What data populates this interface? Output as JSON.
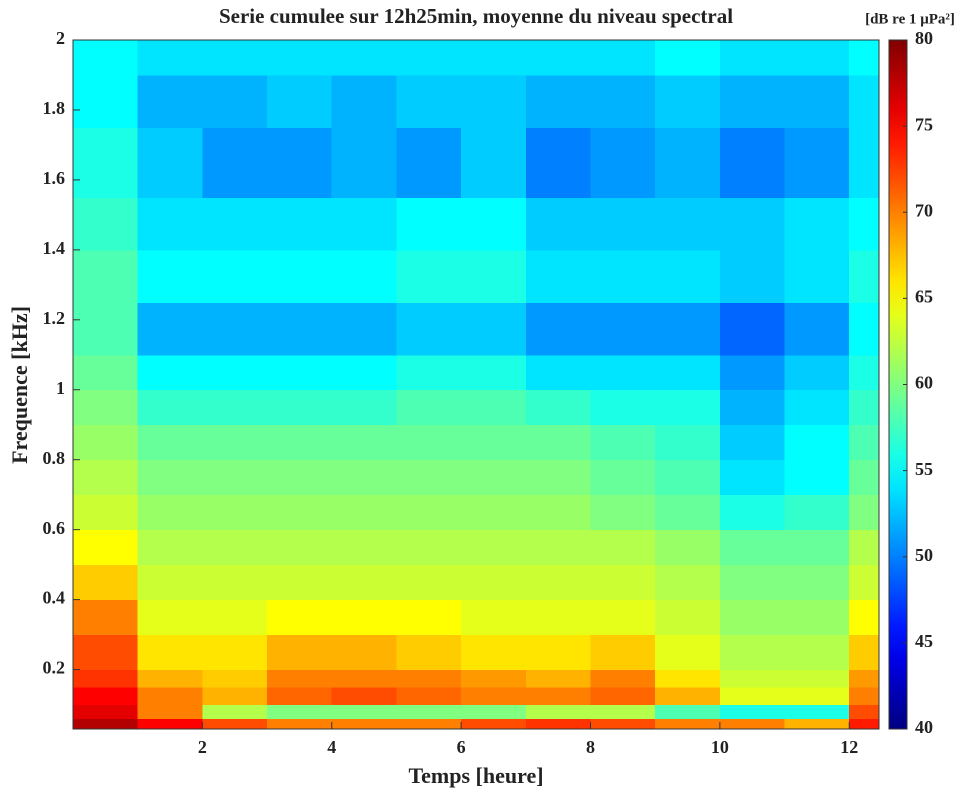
{
  "chart_data": {
    "type": "heatmap",
    "title": "Serie cumulee sur 12h25min, moyenne du niveau spectral",
    "x_label": "Temps [heure]",
    "y_label": "Frequence [kHz]",
    "colorbar_label": "[dB re 1 μPa²]",
    "xbins": [
      0,
      1,
      2,
      3,
      4,
      5,
      6,
      7,
      8,
      9,
      10,
      11,
      12,
      12.46
    ],
    "ybins": [
      0.03,
      0.06,
      0.1,
      0.15,
      0.2,
      0.3,
      0.4,
      0.5,
      0.6,
      0.7,
      0.8,
      0.9,
      1.0,
      1.1,
      1.25,
      1.4,
      1.55,
      1.75,
      1.9,
      2.0
    ],
    "z": [
      [
        78,
        75,
        72,
        70,
        70,
        70,
        72,
        73,
        72,
        70,
        70,
        68,
        74
      ],
      [
        76,
        70,
        62,
        60,
        60,
        60,
        60,
        62,
        62,
        58,
        56,
        56,
        72
      ],
      [
        75,
        70,
        68,
        71,
        72,
        71,
        70,
        70,
        71,
        68,
        64,
        64,
        70
      ],
      [
        73,
        68,
        67,
        70,
        70,
        70,
        69,
        68,
        70,
        66,
        63,
        63,
        69
      ],
      [
        72,
        66,
        66,
        68,
        68,
        67,
        66,
        66,
        67,
        64,
        62,
        62,
        67
      ],
      [
        70,
        64,
        64,
        65,
        65,
        65,
        64,
        64,
        64,
        63,
        61,
        61,
        65
      ],
      [
        67,
        63,
        63,
        63,
        63,
        63,
        63,
        63,
        63,
        62,
        60,
        60,
        63
      ],
      [
        65,
        62,
        62,
        62,
        62,
        62,
        62,
        62,
        62,
        61,
        59,
        59,
        62
      ],
      [
        63,
        61,
        61,
        61,
        61,
        61,
        61,
        61,
        60,
        59,
        56,
        57,
        60
      ],
      [
        62,
        60,
        60,
        60,
        60,
        60,
        60,
        60,
        59,
        58,
        54,
        55,
        59
      ],
      [
        61,
        59,
        59,
        59,
        59,
        59,
        59,
        59,
        58,
        57,
        53,
        55,
        58
      ],
      [
        60,
        57,
        57,
        57,
        57,
        58,
        58,
        57,
        56,
        56,
        52,
        54,
        57
      ],
      [
        59,
        55,
        55,
        55,
        55,
        56,
        56,
        54,
        54,
        54,
        51,
        53,
        56
      ],
      [
        58,
        52,
        52,
        52,
        52,
        53,
        53,
        51,
        51,
        51,
        49,
        51,
        55
      ],
      [
        58,
        55,
        55,
        55,
        55,
        56,
        56,
        54,
        54,
        54,
        53,
        54,
        56
      ],
      [
        57,
        54,
        54,
        54,
        54,
        55,
        55,
        53,
        53,
        53,
        53,
        54,
        55
      ],
      [
        56,
        53,
        51,
        51,
        52,
        51,
        53,
        50,
        51,
        52,
        50,
        51,
        54
      ],
      [
        55,
        52,
        52,
        53,
        52,
        53,
        53,
        52,
        52,
        53,
        52,
        52,
        54
      ],
      [
        55,
        54,
        54,
        54,
        54,
        54,
        54,
        54,
        54,
        55,
        54,
        54,
        55
      ]
    ],
    "xlim": [
      0,
      12.46
    ],
    "ylim": [
      0.03,
      2
    ],
    "xticks": [
      2,
      4,
      6,
      8,
      10,
      12
    ],
    "yticks": [
      0.2,
      0.4,
      0.6,
      0.8,
      1,
      1.2,
      1.4,
      1.6,
      1.8,
      2
    ],
    "clim": [
      40,
      80
    ],
    "cticks": [
      40,
      45,
      50,
      55,
      60,
      65,
      70,
      75,
      80
    ],
    "colormap": "jet"
  }
}
